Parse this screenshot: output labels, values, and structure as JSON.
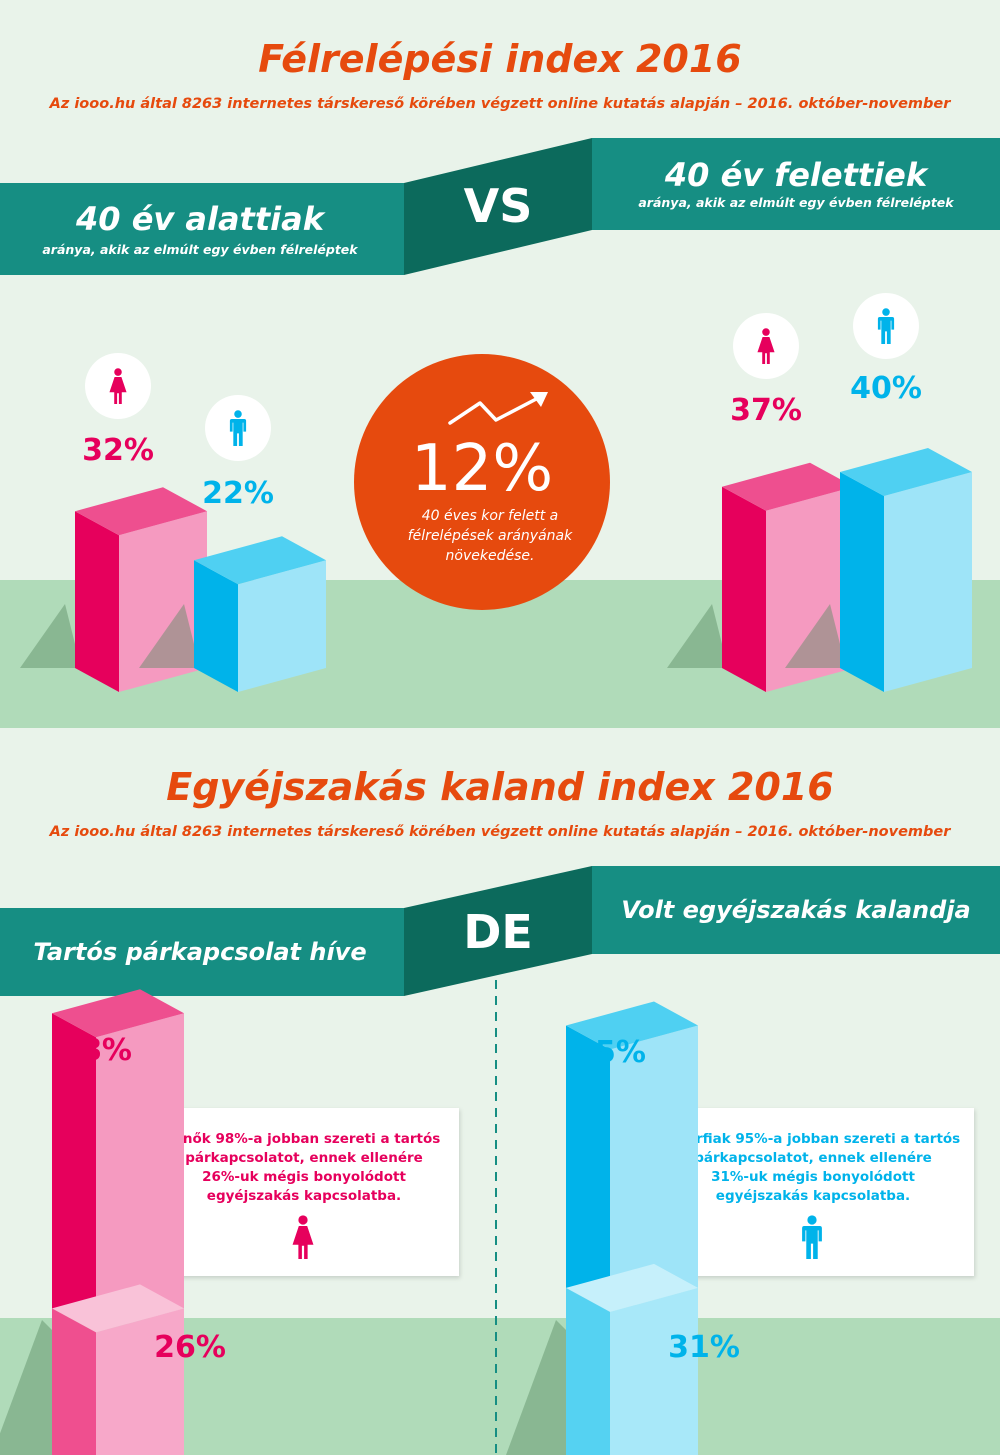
{
  "section1": {
    "title": "Félrelépési index 2016",
    "subtitle": "Az iooo.hu által 8263 internetes társkereső körében végzett online kutatás alapján – 2016. október-november",
    "left_heading": "40 év alattiak",
    "left_caption": "aránya, akik az elmúlt egy évben félreléptek",
    "vs_label": "VS",
    "right_heading": "40 év felettiek",
    "right_caption": "aránya, akik az elmúlt egy évben félreléptek",
    "circle_value": "12%",
    "circle_text": [
      "40 éves kor felett a",
      "félrelépések arányának",
      "növekedése."
    ]
  },
  "section2": {
    "title": "Egyéjszakás kaland index 2016",
    "subtitle": "Az iooo.hu által 8263 internetes társkereső körében végzett online kutatás alapján – 2016. október-november",
    "left_heading": "Tartós párkapcsolat híve",
    "de_label": "DE",
    "right_heading": "Volt egyéjszakás kalandja",
    "women_box": [
      "A nők 98%-a jobban szereti a tartós",
      "párkapcsolatot, ennek ellenére",
      "26%-uk mégis bonyolódott",
      "egyéjszakás kapcsolatba."
    ],
    "men_box": [
      "A férfiak 95%-a jobban szereti a tartós",
      "párkapcsolatot, ennek ellenére",
      "31%-uk mégis bonyolódott",
      "egyéjszakás kapcsolatba."
    ]
  },
  "colors": {
    "women": "#e6005c",
    "men": "#00b3ea",
    "accent": "#e64a0e",
    "teal": "#168e83",
    "teal_dark": "#0c6a5c",
    "ground": "#b0dbb9",
    "background": "#e9f3ea"
  },
  "icons": [
    "female-icon",
    "male-icon",
    "trend-arrow-icon"
  ],
  "chart_data": [
    {
      "type": "bar",
      "series": [
        {
          "name": "40 év alattiak",
          "values": [
            32,
            22
          ],
          "labels": [
            "32%",
            "22%"
          ]
        },
        {
          "name": "40 év felettiek",
          "values": [
            37,
            40
          ],
          "labels": [
            "37%",
            "40%"
          ]
        }
      ],
      "categories": [
        "female-icon",
        "male-icon"
      ],
      "unit": "%"
    },
    {
      "type": "bar",
      "categories": [
        "female-icon",
        "male-icon"
      ],
      "series": [
        {
          "name": "Tartós párkapcsolat híve",
          "values": [
            98,
            95
          ],
          "labels": [
            "98%",
            "95%"
          ]
        },
        {
          "name": "Volt egyéjszakás kalandja",
          "values": [
            26,
            31
          ],
          "labels": [
            "26%",
            "31%"
          ]
        }
      ],
      "unit": "%"
    }
  ]
}
